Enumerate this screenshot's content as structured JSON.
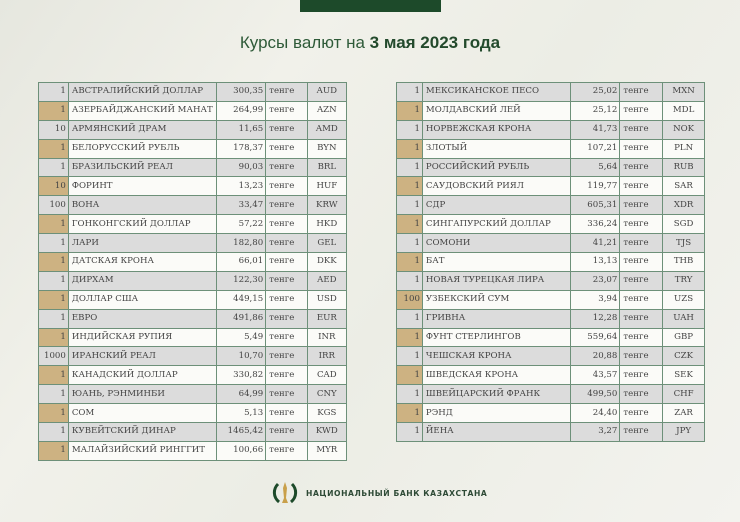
{
  "title": {
    "prefix": "Курсы валют на ",
    "date": "3 мая 2023 года"
  },
  "currency_word": "тенге",
  "footer": {
    "bank_name": "НАЦИОНАЛЬНЫЙ БАНК КАЗАХСТАНА",
    "logo_icon": "national-bank-emblem"
  },
  "colors": {
    "accent_green": "#1d4a2a",
    "tan": "#cdb282",
    "row_grey": "#dcdcdc"
  },
  "left_table": [
    [
      "1",
      "АВСТРАЛИЙСКИЙ ДОЛЛАР",
      "300,35",
      "AUD"
    ],
    [
      "1",
      "АЗЕРБАЙДЖАНСКИЙ МАНАТ",
      "264,99",
      "AZN"
    ],
    [
      "10",
      "АРМЯНСКИЙ  ДРАМ",
      "11,65",
      "AMD"
    ],
    [
      "1",
      "БЕЛОРУССКИЙ РУБЛЬ",
      "178,37",
      "BYN"
    ],
    [
      "1",
      "БРАЗИЛЬСКИЙ РЕАЛ",
      "90,03",
      "BRL"
    ],
    [
      "10",
      "ФОРИНТ",
      "13,23",
      "HUF"
    ],
    [
      "100",
      "ВОНА",
      "33,47",
      "KRW"
    ],
    [
      "1",
      "ГОНКОНГСКИЙ ДОЛЛАР",
      "57,22",
      "HKD"
    ],
    [
      "1",
      "ЛАРИ",
      "182,80",
      "GEL"
    ],
    [
      "1",
      "ДАТСКАЯ КРОНА",
      "66,01",
      "DKK"
    ],
    [
      "1",
      "ДИРХАМ",
      "122,30",
      "AED"
    ],
    [
      "1",
      "ДОЛЛАР США",
      "449,15",
      "USD"
    ],
    [
      "1",
      "ЕВРО",
      "491,86",
      "EUR"
    ],
    [
      "1",
      "ИНДИЙСКАЯ РУПИЯ",
      "5,49",
      "INR"
    ],
    [
      "1000",
      "ИРАНСКИЙ РЕАЛ",
      "10,70",
      "IRR"
    ],
    [
      "1",
      "КАНАДСКИЙ ДОЛЛАР",
      "330,82",
      "CAD"
    ],
    [
      "1",
      "ЮАНЬ, РЭНМИНБИ",
      "64,99",
      "CNY"
    ],
    [
      "1",
      "СОМ",
      "5,13",
      "KGS"
    ],
    [
      "1",
      "КУВЕЙТСКИЙ ДИНАР",
      "1465,42",
      "KWD"
    ],
    [
      "1",
      "МАЛАЙЗИЙСКИЙ РИНГГИТ",
      "100,66",
      "MYR"
    ]
  ],
  "right_table": [
    [
      "1",
      "МЕКСИКАНСКОЕ ПЕСО",
      "25,02",
      "MXN"
    ],
    [
      "1",
      "МОЛДАВСКИЙ ЛЕЙ",
      "25,12",
      "MDL"
    ],
    [
      "1",
      "НОРВЕЖСКАЯ КРОНА",
      "41,73",
      "NOK"
    ],
    [
      "1",
      "ЗЛОТЫЙ",
      "107,21",
      "PLN"
    ],
    [
      "1",
      "РОССИЙСКИЙ РУБЛЬ",
      "5,64",
      "RUB"
    ],
    [
      "1",
      "САУДОВСКИЙ РИЯЛ",
      "119,77",
      "SAR"
    ],
    [
      "1",
      "СДР",
      "605,31",
      "XDR"
    ],
    [
      "1",
      "СИНГАПУРСКИЙ ДОЛЛАР",
      "336,24",
      "SGD"
    ],
    [
      "1",
      "СОМОНИ",
      "41,21",
      "TJS"
    ],
    [
      "1",
      "БАТ",
      "13,13",
      "THB"
    ],
    [
      "1",
      "НОВАЯ ТУРЕЦКАЯ ЛИРА",
      "23,07",
      "TRY"
    ],
    [
      "100",
      "УЗБЕКСКИЙ СУМ",
      "3,94",
      "UZS"
    ],
    [
      "1",
      "ГРИВНА",
      "12,28",
      "UAH"
    ],
    [
      "1",
      "ФУНТ СТЕРЛИНГОВ",
      "559,64",
      "GBP"
    ],
    [
      "1",
      "ЧЕШСКАЯ КРОНА",
      "20,88",
      "CZK"
    ],
    [
      "1",
      "ШВЕДСКАЯ КРОНА",
      "43,57",
      "SEK"
    ],
    [
      "1",
      "ШВЕЙЦАРСКИЙ ФРАНК",
      "499,50",
      "CHF"
    ],
    [
      "1",
      "РЭНД",
      "24,40",
      "ZAR"
    ],
    [
      "1",
      "ЙЕНА",
      "3,27",
      "JPY"
    ]
  ]
}
